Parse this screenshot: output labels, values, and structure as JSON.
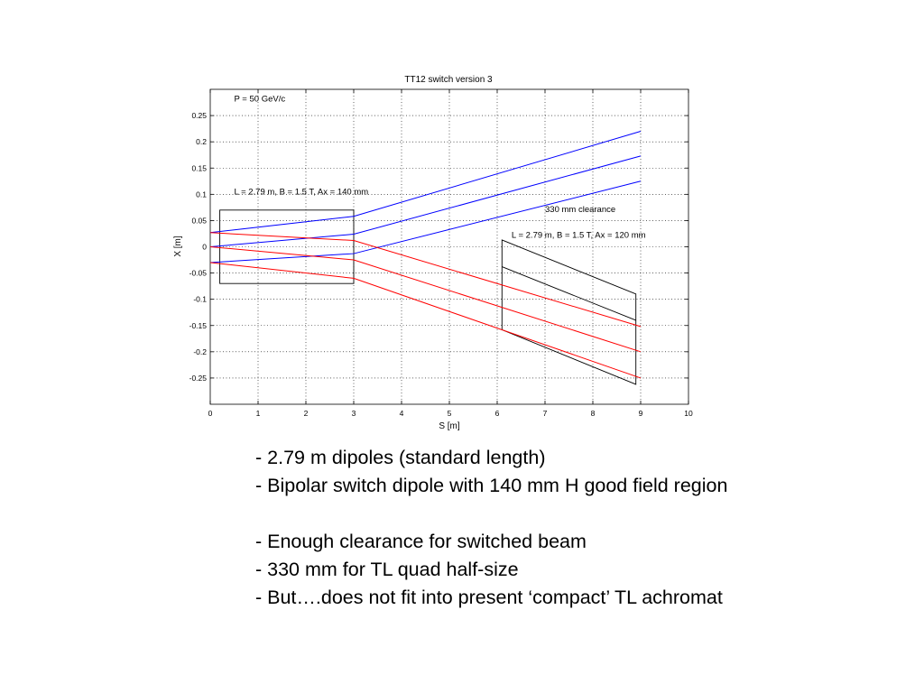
{
  "chart_data": {
    "type": "line",
    "title": "TT12 switch version 3",
    "xlabel": "S [m]",
    "ylabel": "X [m]",
    "xlim": [
      0,
      10
    ],
    "ylim": [
      -0.3,
      0.3
    ],
    "xticks": [
      0,
      1,
      2,
      3,
      4,
      5,
      6,
      7,
      8,
      9,
      10
    ],
    "yticks": [
      0.25,
      0.2,
      0.15,
      0.1,
      0.05,
      0,
      -0.05,
      -0.1,
      -0.15,
      -0.2,
      -0.25
    ],
    "xtick_labels": [
      "0",
      "1",
      "2",
      "3",
      "4",
      "5",
      "6",
      "7",
      "8",
      "9",
      "10"
    ],
    "ytick_labels": [
      "0.25",
      "0.2",
      "0.15",
      "0.1",
      "0.05",
      "0",
      "-0.05",
      "-0.1",
      "-0.15",
      "-0.2",
      "-0.25"
    ],
    "grid": true,
    "colors": {
      "blue": "#0000ff",
      "red": "#ff0000",
      "outline": "#000000"
    },
    "series": [
      {
        "color": "blue",
        "x": [
          0,
          3,
          9
        ],
        "y": [
          0.027,
          0.058,
          0.22
        ]
      },
      {
        "color": "blue",
        "x": [
          0,
          3,
          9
        ],
        "y": [
          0,
          0.024,
          0.173
        ]
      },
      {
        "color": "blue",
        "x": [
          0,
          3,
          9
        ],
        "y": [
          -0.03,
          -0.013,
          0.125
        ]
      },
      {
        "color": "red",
        "x": [
          0,
          3,
          9
        ],
        "y": [
          0.027,
          0.012,
          -0.152
        ]
      },
      {
        "color": "red",
        "x": [
          0,
          3,
          9
        ],
        "y": [
          0,
          -0.025,
          -0.2
        ]
      },
      {
        "color": "red",
        "x": [
          0,
          3,
          9
        ],
        "y": [
          -0.03,
          -0.06,
          -0.25
        ]
      }
    ],
    "shapes": [
      {
        "name": "switch-dipole-box",
        "points": [
          [
            0.2,
            0.07
          ],
          [
            3,
            0.07
          ],
          [
            3,
            -0.07
          ],
          [
            0.2,
            -0.07
          ]
        ]
      },
      {
        "name": "downstream-dipole-box",
        "points": [
          [
            6.1,
            0.013
          ],
          [
            8.9,
            -0.09
          ],
          [
            8.9,
            -0.262
          ],
          [
            6.1,
            -0.158
          ]
        ]
      },
      {
        "name": "downstream-dipole-midline",
        "points": [
          [
            6.1,
            -0.038
          ],
          [
            8.9,
            -0.14
          ]
        ]
      }
    ],
    "annotations": [
      {
        "text": "P = 50 GeV/c",
        "x": 0.5,
        "y": 0.277
      },
      {
        "text": "L = 2.79 m, B = 1.5 T, Ax = 140 mm",
        "x": 0.5,
        "y": 0.1
      },
      {
        "text": "330 mm clearance",
        "x": 7.0,
        "y": 0.066
      },
      {
        "text": "L = 2.79 m, B = 1.5 T, Ax = 120 mm",
        "x": 6.3,
        "y": 0.017
      }
    ]
  },
  "bullets": [
    "- 2.79 m dipoles (standard length)",
    "- Bipolar switch dipole with 140 mm H good field region",
    "",
    "- Enough clearance for switched beam",
    "- 330 mm for TL quad half-size",
    "- But….does not fit into present ‘compact’ TL achromat"
  ]
}
